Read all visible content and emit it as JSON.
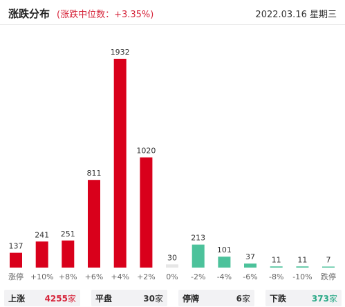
{
  "header": {
    "title": "涨跌分布",
    "median": "(涨跌中位数：+3.35%)",
    "date": "2022.03.16 星期三"
  },
  "chart_data": {
    "type": "bar",
    "title": "涨跌分布",
    "categories": [
      "涨停",
      "+10%",
      "+8%",
      "+6%",
      "+4%",
      "+2%",
      "0%",
      "-2%",
      "-4%",
      "-6%",
      "-8%",
      "-10%",
      "跌停"
    ],
    "values": [
      137,
      241,
      251,
      811,
      1932,
      1020,
      30,
      213,
      101,
      37,
      11,
      11,
      7
    ],
    "value_labels": [
      "137",
      "241",
      "251",
      "811",
      "1932",
      "1020",
      "30",
      "213",
      "101",
      "37",
      "11",
      "11",
      "7"
    ],
    "ylim": [
      0,
      1932
    ],
    "grid": false,
    "colors": {
      "up": "#d9001b",
      "flat": "#e6e6e6",
      "down": "#4cc29b"
    },
    "bar_color_groups": [
      "up",
      "up",
      "up",
      "up",
      "up",
      "up",
      "flat",
      "down",
      "down",
      "down",
      "down",
      "down",
      "down"
    ]
  },
  "footer": {
    "up": {
      "label": "上涨",
      "count": "4255",
      "unit": "家"
    },
    "flat": {
      "label": "平盘",
      "count": "30",
      "unit": "家"
    },
    "halt": {
      "label": "停牌",
      "count": "6",
      "unit": "家"
    },
    "down": {
      "label": "下跌",
      "count": "373",
      "unit": "家"
    }
  }
}
